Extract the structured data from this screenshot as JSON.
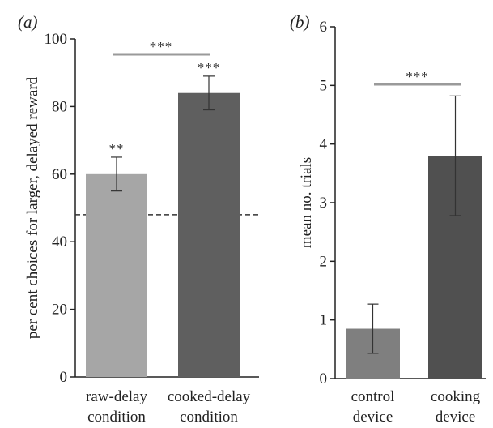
{
  "chart_data": [
    {
      "type": "bar",
      "panel_label": "(a)",
      "categories": [
        "raw-delay condition",
        "cooked-delay condition"
      ],
      "category_lines": [
        [
          "raw-delay",
          "condition"
        ],
        [
          "cooked-delay",
          "condition"
        ]
      ],
      "values": [
        60,
        84
      ],
      "errors": [
        5,
        5
      ],
      "bar_colors": [
        "#a6a6a6",
        "#5f5f5f"
      ],
      "bar_annotations": [
        "**",
        "***"
      ],
      "comparison": {
        "from": 0,
        "to": 1,
        "label": "***"
      },
      "reference_line": {
        "y": 48,
        "style": "dashed"
      },
      "title": "",
      "xlabel": "",
      "ylabel": "per cent choices for larger, delayed reward",
      "ylim": [
        0,
        100
      ],
      "yticks": [
        0,
        20,
        40,
        60,
        80,
        100
      ],
      "grid": false
    },
    {
      "type": "bar",
      "panel_label": "(b)",
      "categories": [
        "control device",
        "cooking device"
      ],
      "category_lines": [
        [
          "control",
          "device"
        ],
        [
          "cooking",
          "device"
        ]
      ],
      "values": [
        0.85,
        3.8
      ],
      "errors": [
        0.42,
        1.02
      ],
      "bar_colors": [
        "#7f7f7f",
        "#505050"
      ],
      "bar_annotations": [
        "",
        ""
      ],
      "comparison": {
        "from": 0,
        "to": 1,
        "label": "***"
      },
      "title": "",
      "xlabel": "",
      "ylabel": "mean no. trials",
      "ylim": [
        0,
        6
      ],
      "yticks": [
        0,
        1,
        2,
        3,
        4,
        5,
        6
      ],
      "grid": false
    }
  ]
}
